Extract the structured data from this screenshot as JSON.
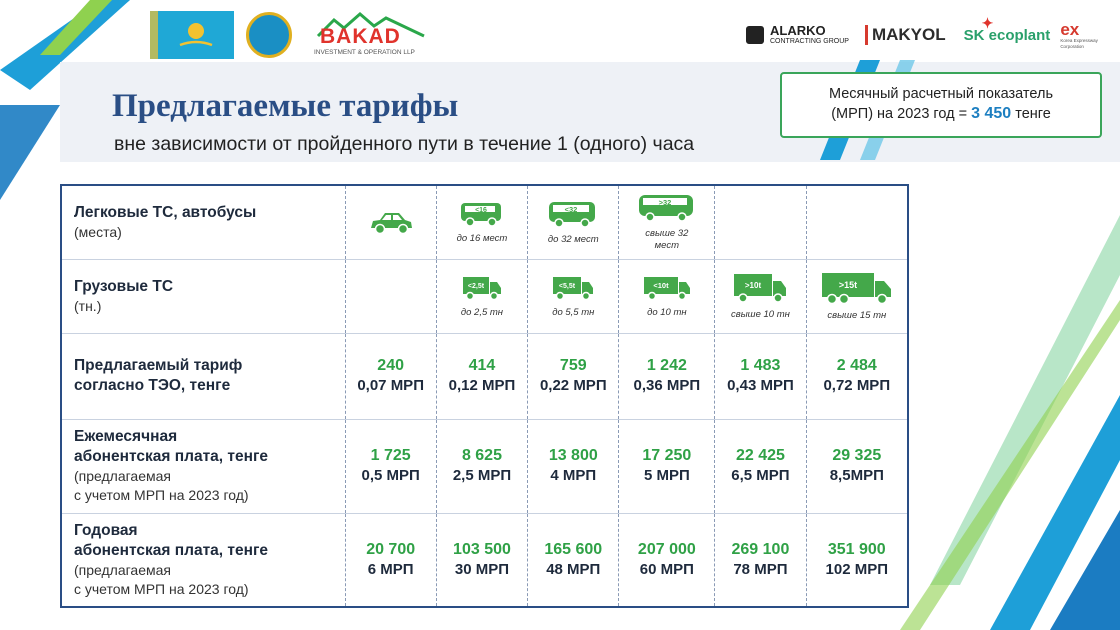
{
  "header": {
    "bakad_name": "BAKAD",
    "bakad_sub": "INVESTMENT & OPERATION LLP",
    "partners": [
      {
        "name": "ALARKO",
        "sub": "CONTRACTING GROUP"
      },
      {
        "name": "MAKYOL"
      },
      {
        "name": "SK ecoplant"
      },
      {
        "name": "EX",
        "sub": "Korea Expressway Corporation"
      }
    ]
  },
  "title": "Предлагаемые тарифы",
  "subtitle": "вне зависимости от пройденного пути в течение 1 (одного) часа",
  "mrp_box": {
    "line1": "Месячный расчетный показатель",
    "line2_prefix": "(МРП) на 2023 год = ",
    "value": "3 450",
    "line2_suffix": " тенге"
  },
  "table": {
    "row_passenger": {
      "label": "Легковые ТС, автобусы",
      "note": "(места)",
      "icons": [
        {
          "icon": "car-icon",
          "badge": "",
          "caption": ""
        },
        {
          "icon": "bus-icon",
          "badge": "<16",
          "caption": "до 16 мест"
        },
        {
          "icon": "bus-icon",
          "badge": "<32",
          "caption": "до 32 мест"
        },
        {
          "icon": "bus-icon",
          "badge": ">32",
          "caption": "свыше 32 мест"
        }
      ]
    },
    "row_trucks": {
      "label": "Грузовые ТС",
      "note": "(тн.)",
      "icons": [
        {
          "icon": "truck-icon",
          "badge": "<2,5t",
          "caption": "до 2,5 тн"
        },
        {
          "icon": "truck-icon",
          "badge": "<5,5t",
          "caption": "до 5,5 тн"
        },
        {
          "icon": "truck-icon",
          "badge": "<10t",
          "caption": "до 10 тн"
        },
        {
          "icon": "truck-icon",
          "badge": ">10t",
          "caption": "свыше 10 тн"
        },
        {
          "icon": "truck-icon",
          "badge": ">15t",
          "caption": "свыше 15 тн"
        }
      ]
    },
    "rows": [
      {
        "label": [
          "Предлагаемый тариф",
          "согласно ТЭО, тенге"
        ],
        "note": [],
        "values": [
          {
            "main": "240",
            "mrp": "0,07 МРП"
          },
          {
            "main": "414",
            "mrp": "0,12 МРП"
          },
          {
            "main": "759",
            "mrp": "0,22 МРП"
          },
          {
            "main": "1 242",
            "mrp": "0,36 МРП"
          },
          {
            "main": "1 483",
            "mrp": "0,43 МРП"
          },
          {
            "main": "2 484",
            "mrp": "0,72 МРП"
          }
        ]
      },
      {
        "label": [
          "Ежемесячная",
          "абонентская плата, тенге"
        ],
        "note": [
          "(предлагаемая",
          "с учетом МРП на 2023 год)"
        ],
        "values": [
          {
            "main": "1 725",
            "mrp": "0,5 МРП"
          },
          {
            "main": "8 625",
            "mrp": "2,5 МРП"
          },
          {
            "main": "13 800",
            "mrp": "4 МРП"
          },
          {
            "main": "17 250",
            "mrp": "5 МРП"
          },
          {
            "main": "22 425",
            "mrp": "6,5 МРП"
          },
          {
            "main": "29 325",
            "mrp": "8,5МРП"
          }
        ]
      },
      {
        "label": [
          "Годовая",
          "абонентская плата, тенге"
        ],
        "note": [
          "(предлагаемая",
          "с учетом МРП на 2023 год)"
        ],
        "values": [
          {
            "main": "20 700",
            "mrp": "6 МРП"
          },
          {
            "main": "103 500",
            "mrp": "30 МРП"
          },
          {
            "main": "165 600",
            "mrp": "48 МРП"
          },
          {
            "main": "207 000",
            "mrp": "60 МРП"
          },
          {
            "main": "269 100",
            "mrp": "78 МРП"
          },
          {
            "main": "351 900",
            "mrp": "102 МРП"
          }
        ]
      }
    ]
  },
  "colors": {
    "title": "#2a4e85",
    "green": "#2fa146",
    "accent_blue": "#1d7fc1",
    "table_border": "#2a4e85"
  }
}
